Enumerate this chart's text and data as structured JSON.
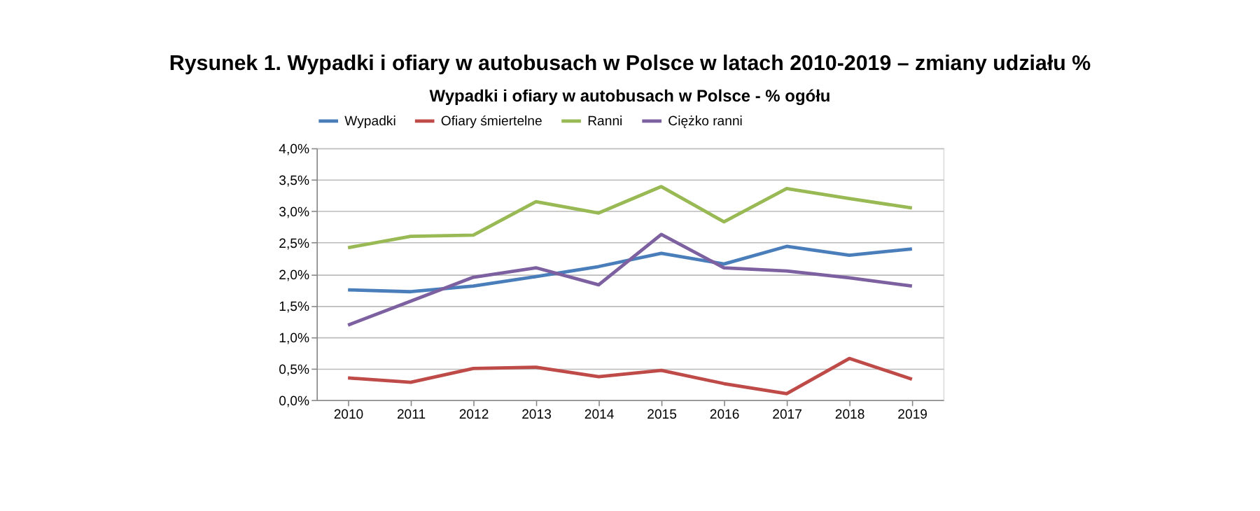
{
  "chart_data": {
    "type": "line",
    "title": "Rysunek 1. Wypadki i ofiary w autobusach w Polsce w latach 2010-2019 – zmiany udziału %",
    "subtitle": "Wypadki i ofiary w autobusach w Polsce - % ogółu",
    "categories": [
      "2010",
      "2011",
      "2012",
      "2013",
      "2014",
      "2015",
      "2016",
      "2017",
      "2018",
      "2019"
    ],
    "series": [
      {
        "name": "Wypadki",
        "color": "#4a7ebb",
        "values": [
          1.75,
          1.72,
          1.81,
          1.96,
          2.12,
          2.33,
          2.16,
          2.44,
          2.3,
          2.4
        ]
      },
      {
        "name": "Ofiary śmiertelne",
        "color": "#be4b48",
        "values": [
          0.35,
          0.28,
          0.5,
          0.52,
          0.37,
          0.47,
          0.26,
          0.1,
          0.66,
          0.33
        ]
      },
      {
        "name": "Ranni",
        "color": "#98b954",
        "values": [
          2.42,
          2.6,
          2.62,
          3.15,
          2.97,
          3.39,
          2.83,
          3.36,
          3.2,
          3.05
        ]
      },
      {
        "name": "Ciężko ranni",
        "color": "#7d60a0",
        "values": [
          1.19,
          1.57,
          1.95,
          2.1,
          1.83,
          2.63,
          2.1,
          2.05,
          1.94,
          1.81
        ]
      }
    ],
    "ylim": [
      0,
      4
    ],
    "yticks": [
      {
        "value": 0,
        "label": "0,0%"
      },
      {
        "value": 0.5,
        "label": "0,5%"
      },
      {
        "value": 1,
        "label": "1,0%"
      },
      {
        "value": 1.5,
        "label": "1,5%"
      },
      {
        "value": 2,
        "label": "2,0%"
      },
      {
        "value": 2.5,
        "label": "2,5%"
      },
      {
        "value": 3,
        "label": "3,0%"
      },
      {
        "value": 3.5,
        "label": "3,5%"
      },
      {
        "value": 4,
        "label": "4,0%"
      }
    ],
    "grid": "y",
    "legend": "top",
    "marker": "none",
    "line_style": "solid"
  }
}
